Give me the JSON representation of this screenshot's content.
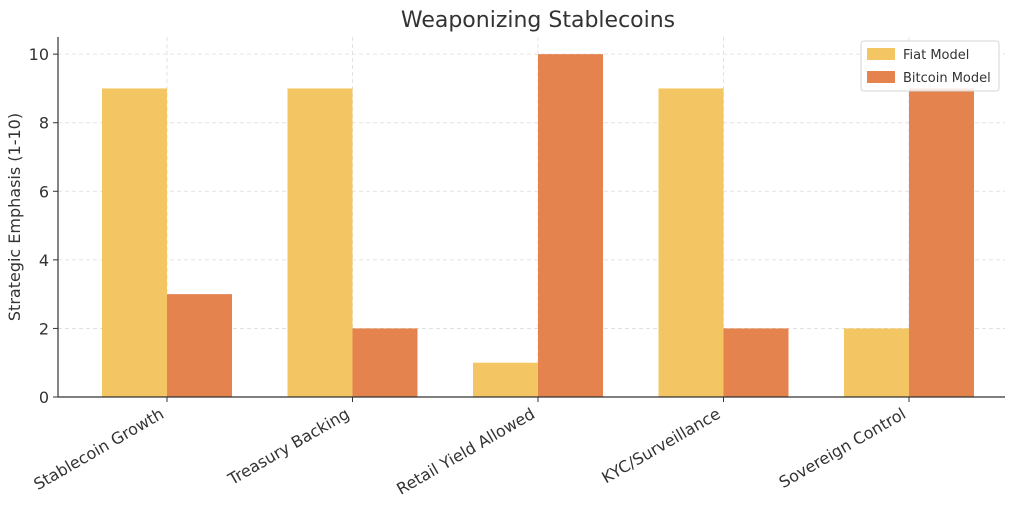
{
  "chart_data": {
    "type": "bar",
    "title": "Weaponizing Stablecoins",
    "xlabel": "",
    "ylabel": "Strategic Emphasis (1-10)",
    "categories": [
      "Stablecoin Growth",
      "Treasury Backing",
      "Retail Yield Allowed",
      "KYC/Surveillance",
      "Sovereign Control"
    ],
    "series": [
      {
        "name": "Fiat Model",
        "values": [
          9,
          9,
          1,
          9,
          2
        ],
        "color": "#F4C563"
      },
      {
        "name": "Bitcoin Model",
        "values": [
          3,
          2,
          10,
          2,
          9
        ],
        "color": "#E5834F"
      }
    ],
    "ylim": [
      0,
      10.5
    ],
    "yticks": [
      0,
      2,
      4,
      6,
      8,
      10
    ],
    "grid": true,
    "legend_position": "top-right"
  }
}
